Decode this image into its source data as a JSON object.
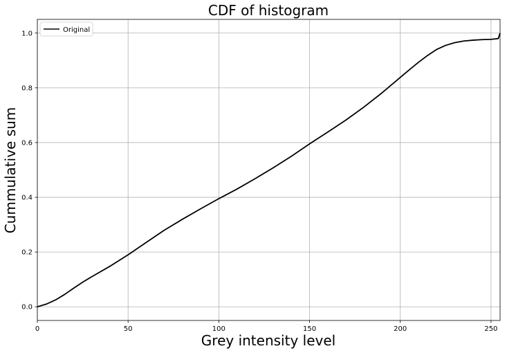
{
  "chart_data": {
    "type": "line",
    "title": "CDF of histogram",
    "xlabel": "Grey intensity level",
    "ylabel": "Cummulative sum",
    "xlim": [
      0,
      255
    ],
    "ylim": [
      -0.05,
      1.05
    ],
    "xticks": [
      0,
      50,
      100,
      150,
      200,
      250
    ],
    "yticks": [
      0.0,
      0.2,
      0.4,
      0.6,
      0.8,
      1.0
    ],
    "xtick_labels": [
      "0",
      "50",
      "100",
      "150",
      "200",
      "250"
    ],
    "ytick_labels": [
      "0.0",
      "0.2",
      "0.4",
      "0.6",
      "0.8",
      "1.0"
    ],
    "grid": true,
    "legend_position": "top-left",
    "series": [
      {
        "name": "Original",
        "color": "#000000",
        "x": [
          0,
          5,
          10,
          15,
          20,
          25,
          30,
          40,
          50,
          60,
          70,
          80,
          90,
          100,
          110,
          120,
          130,
          140,
          150,
          160,
          170,
          180,
          190,
          200,
          205,
          210,
          215,
          220,
          225,
          230,
          235,
          240,
          245,
          250,
          254,
          255
        ],
        "y": [
          0.0,
          0.01,
          0.025,
          0.045,
          0.068,
          0.09,
          0.11,
          0.148,
          0.19,
          0.235,
          0.28,
          0.32,
          0.358,
          0.395,
          0.43,
          0.468,
          0.508,
          0.55,
          0.595,
          0.638,
          0.682,
          0.73,
          0.782,
          0.838,
          0.866,
          0.893,
          0.918,
          0.94,
          0.955,
          0.965,
          0.971,
          0.974,
          0.976,
          0.977,
          0.98,
          1.0
        ]
      }
    ]
  }
}
